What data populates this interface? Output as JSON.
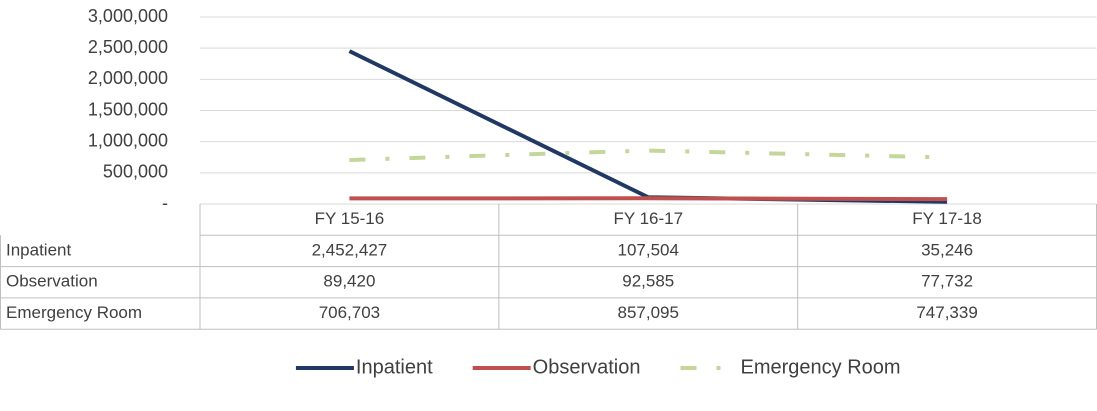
{
  "chart_data": {
    "type": "line",
    "categories": [
      "FY 15-16",
      "FY 16-17",
      "FY 17-18"
    ],
    "series": [
      {
        "name": "Inpatient",
        "color": "#203864",
        "line_style": "solid",
        "values": [
          2452427,
          107504,
          35246
        ],
        "value_labels": [
          "2,452,427",
          "107,504",
          "35,246"
        ]
      },
      {
        "name": "Observation",
        "color": "#c0504d",
        "line_style": "solid",
        "values": [
          89420,
          92585,
          77732
        ],
        "value_labels": [
          "89,420",
          "92,585",
          "77,732"
        ]
      },
      {
        "name": "Emergency Room",
        "color": "#c4d79b",
        "line_style": "dash-dot",
        "values": [
          706703,
          857095,
          747339
        ],
        "value_labels": [
          "706,703",
          "857,095",
          "747,339"
        ]
      }
    ],
    "ylim": [
      0,
      3000000
    ],
    "yticks": [
      {
        "value": 0,
        "label": "-"
      },
      {
        "value": 500000,
        "label": "500,000"
      },
      {
        "value": 1000000,
        "label": "1,000,000"
      },
      {
        "value": 1500000,
        "label": "1,500,000"
      },
      {
        "value": 2000000,
        "label": "2,000,000"
      },
      {
        "value": 2500000,
        "label": "2,500,000"
      },
      {
        "value": 3000000,
        "label": "3,000,000"
      }
    ],
    "grid": true,
    "legend": "bottom",
    "data_table": true
  }
}
